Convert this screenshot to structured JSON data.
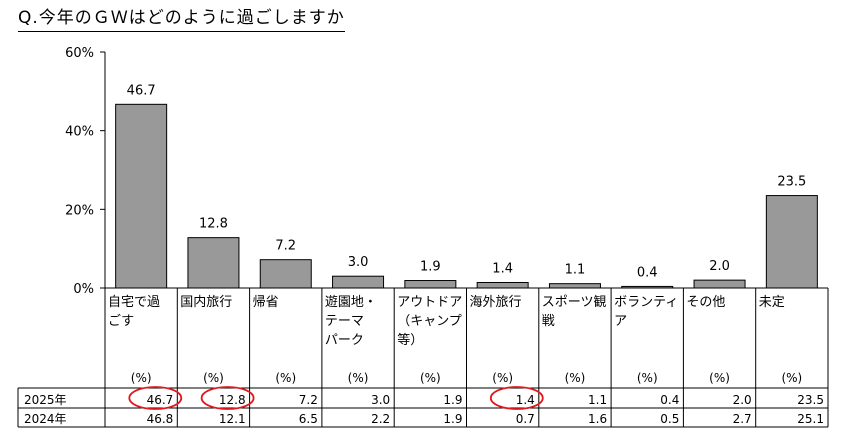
{
  "title": "Q.今年のＧＷはどのように過ごしますか",
  "chart_data": {
    "type": "bar",
    "title": "Q.今年のＧＷはどのように過ごしますか",
    "categories": [
      [
        "自宅で過",
        "ごす"
      ],
      [
        "国内旅行"
      ],
      [
        "帰省"
      ],
      [
        "遊園地・",
        "テーマ",
        "パーク"
      ],
      [
        "アウトドア",
        "（キャンプ",
        "等）"
      ],
      [
        "海外旅行"
      ],
      [
        "スポーツ観",
        "戦"
      ],
      [
        "ボランティ",
        "ア"
      ],
      [
        "その他"
      ],
      [
        "未定"
      ]
    ],
    "unit_label": "(%)",
    "values": [
      46.7,
      12.8,
      7.2,
      3.0,
      1.9,
      1.4,
      1.1,
      0.4,
      2.0,
      23.5
    ],
    "value_labels": [
      "46.7",
      "12.8",
      "7.2",
      "3.0",
      "1.9",
      "1.4",
      "1.1",
      "0.4",
      "2.0",
      "23.5"
    ],
    "ylim": [
      0,
      60
    ],
    "yticks": [
      "0%",
      "20%",
      "40%",
      "60%"
    ],
    "ytick_values": [
      0,
      20,
      40,
      60
    ],
    "bar_color": "#999999",
    "table": {
      "rows": [
        {
          "label": "2025年",
          "values": [
            "46.7",
            "12.8",
            "7.2",
            "3.0",
            "1.9",
            "1.4",
            "1.1",
            "0.4",
            "2.0",
            "23.5"
          ]
        },
        {
          "label": "2024年",
          "values": [
            "46.8",
            "12.1",
            "6.5",
            "2.2",
            "1.9",
            "0.7",
            "1.6",
            "0.5",
            "2.7",
            "25.1"
          ]
        }
      ]
    },
    "highlighted_cells": [
      0,
      1,
      5
    ],
    "highlight_color": "#e0191e"
  }
}
